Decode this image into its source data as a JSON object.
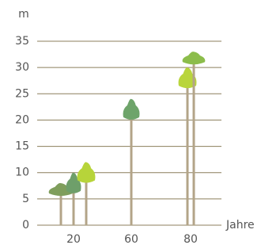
{
  "chart_data": {
    "type": "tree-groups",
    "y_unit": "m",
    "x_label": "Jahre",
    "categories": [
      20,
      60,
      80
    ],
    "groups": [
      {
        "heights": [
          8,
          10,
          12
        ],
        "colors": [
          "#7f9e5c",
          "#6e9f6a",
          "#b7d43a"
        ]
      },
      {
        "heights": [
          24
        ],
        "colors": [
          "#6ea46a"
        ]
      },
      {
        "heights": [
          30,
          33
        ],
        "colors": [
          "#b9d53c",
          "#8cbd4b"
        ]
      }
    ],
    "trunk_color": "#b3a488",
    "ylim": [
      0,
      35
    ],
    "yticks": [
      0,
      5,
      10,
      15,
      20,
      25,
      30,
      35
    ],
    "grid": true
  }
}
